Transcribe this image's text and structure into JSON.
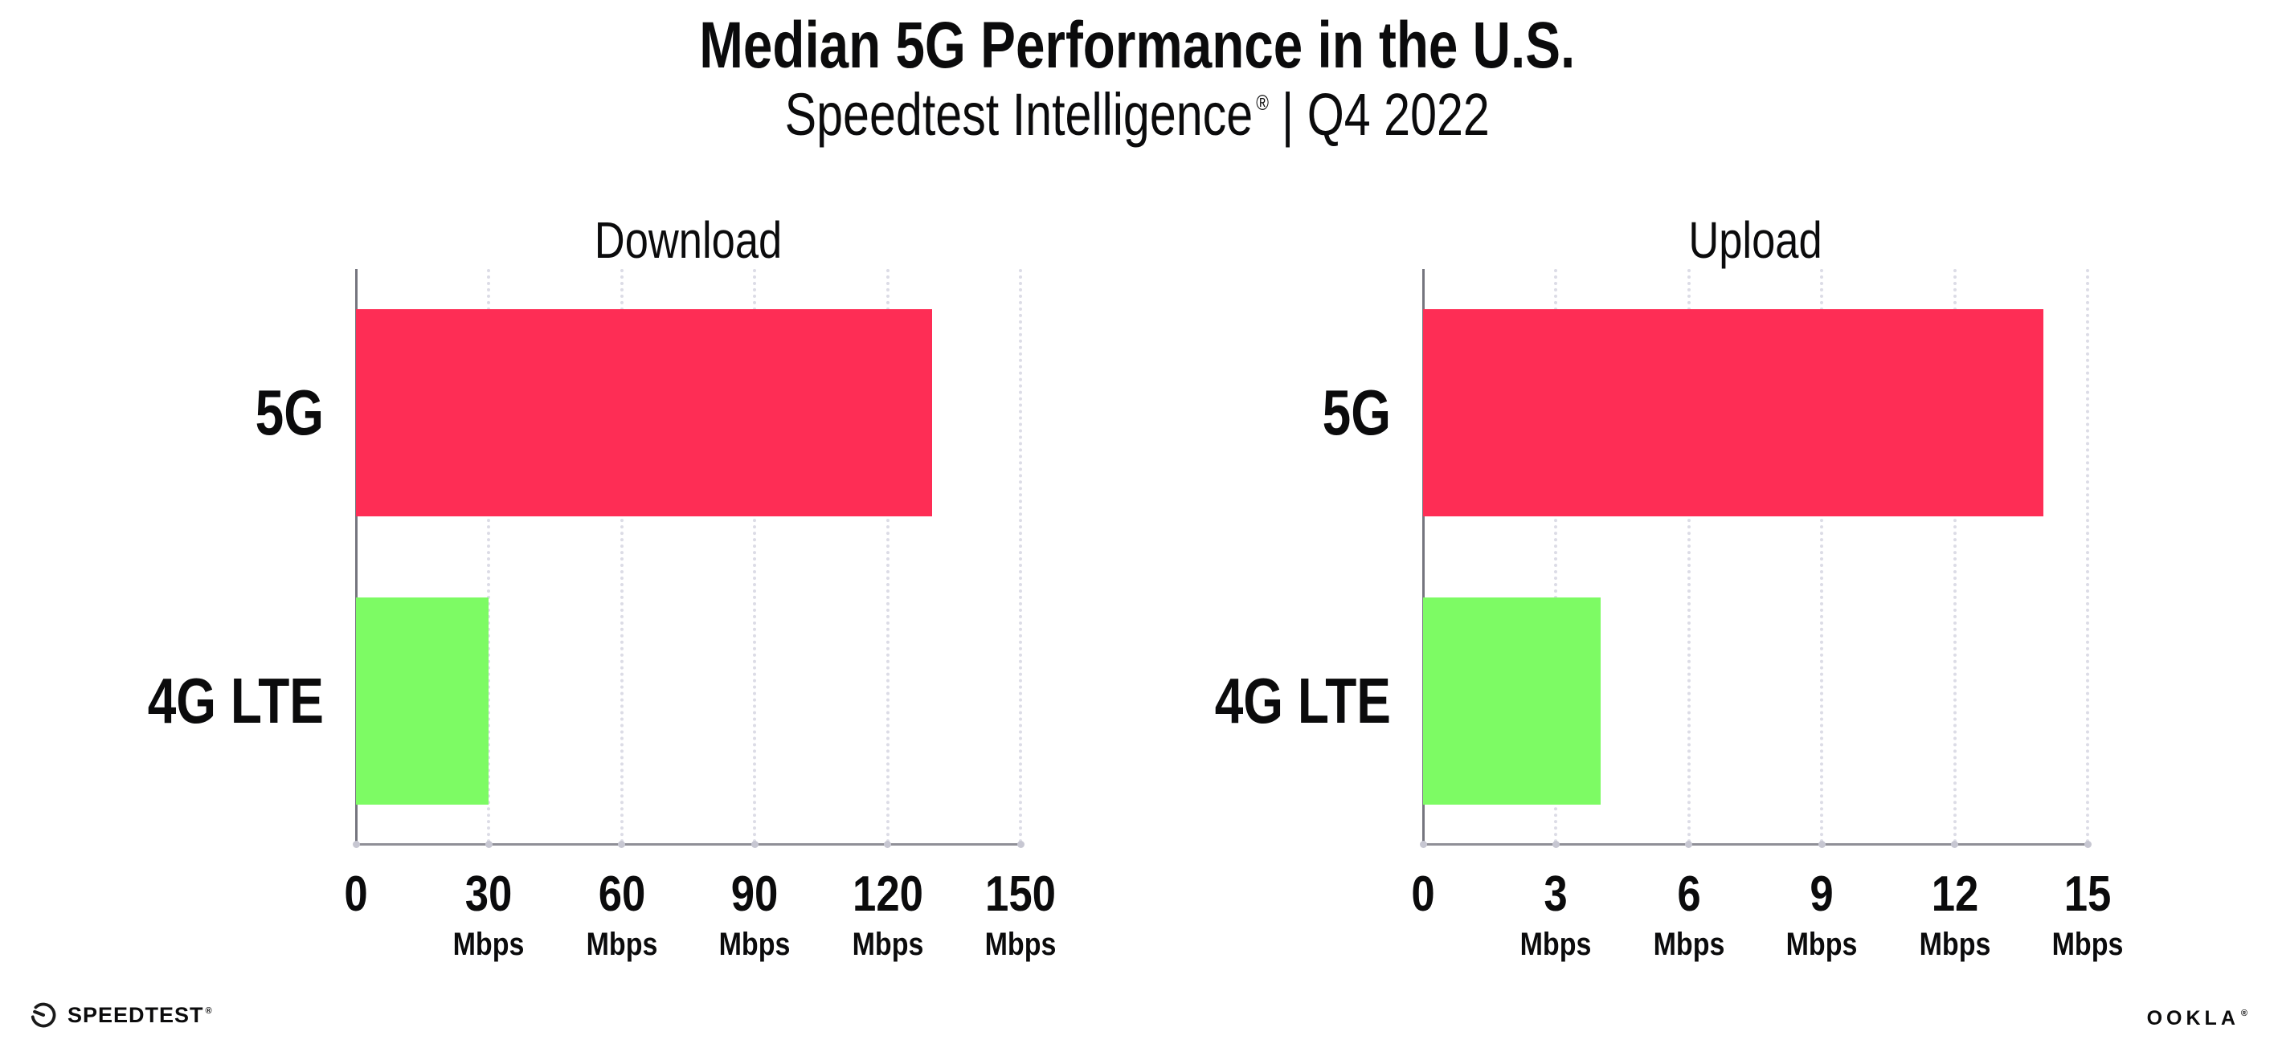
{
  "header": {
    "title": "Median 5G Performance in the U.S.",
    "subtitle_brand": "Speedtest Intelligence",
    "subtitle_mark": "®",
    "subtitle_rest": "| Q4 2022"
  },
  "chart_data": [
    {
      "type": "bar",
      "orientation": "horizontal",
      "title": "Download",
      "categories": [
        "5G",
        "4G LTE"
      ],
      "values": [
        130,
        30
      ],
      "unit": "Mbps",
      "xlim": [
        0,
        150
      ],
      "xticks": [
        0,
        30,
        60,
        90,
        120,
        150
      ],
      "grid": "dotted-vertical",
      "legend": "none",
      "series_colors": [
        "#FE2D55",
        "#7DFB64"
      ]
    },
    {
      "type": "bar",
      "orientation": "horizontal",
      "title": "Upload",
      "categories": [
        "5G",
        "4G LTE"
      ],
      "values": [
        14,
        4
      ],
      "unit": "Mbps",
      "xlim": [
        0,
        15
      ],
      "xticks": [
        0,
        3,
        6,
        9,
        12,
        15
      ],
      "grid": "dotted-vertical",
      "legend": "none",
      "series_colors": [
        "#FE2D55",
        "#7DFB64"
      ]
    }
  ],
  "colors": {
    "bar_5g": "#FE2D55",
    "bar_4g_lte": "#7DFB64",
    "gridline": "#DCDCE6",
    "axis": "#8F8F97",
    "text": "#0B0B0C"
  },
  "footer": {
    "speedtest_label": "SPEEDTEST",
    "speedtest_mark": "®",
    "ookla_label": "OOKLA",
    "ookla_mark": "®"
  }
}
